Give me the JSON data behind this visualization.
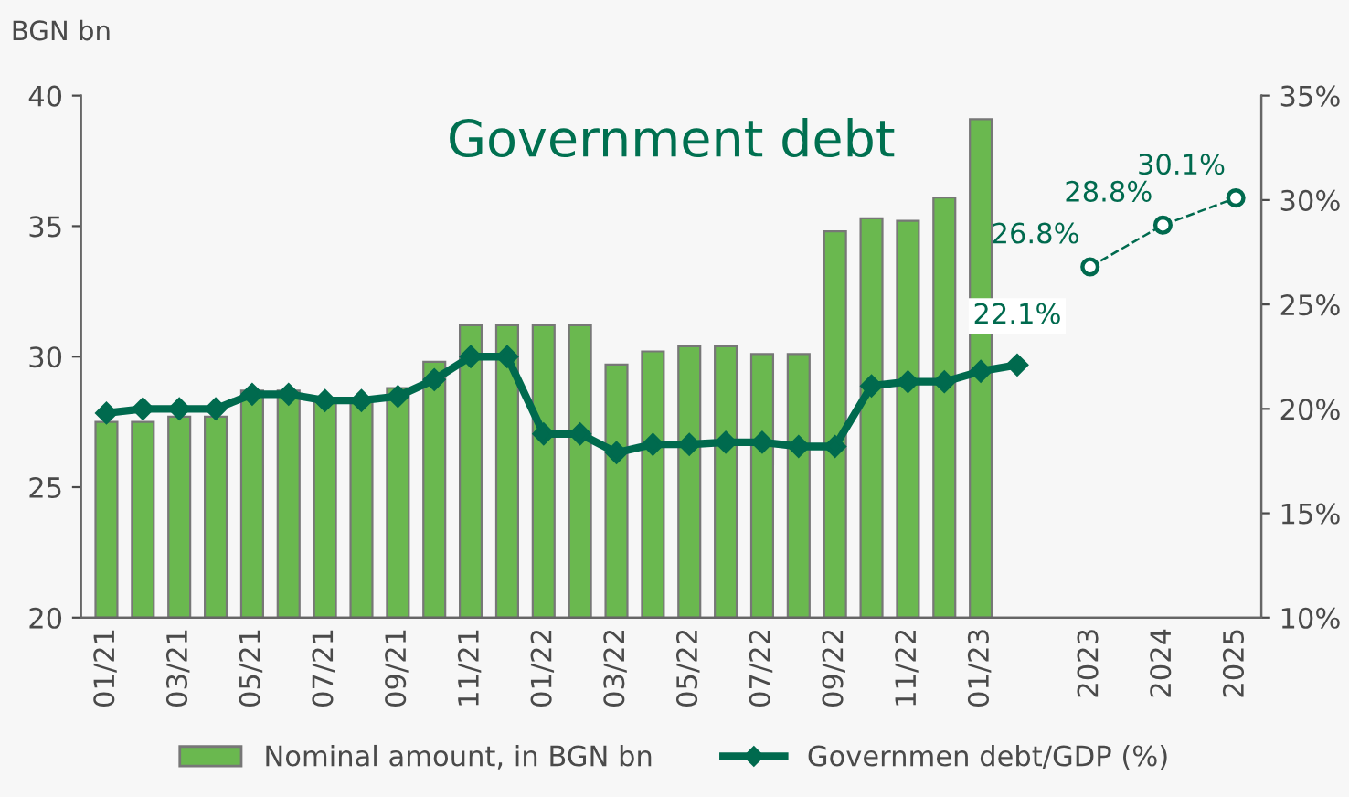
{
  "chart_data": {
    "type": "bar",
    "title": "Government debt",
    "ylabel": "BGN bn",
    "categories": [
      "01/21",
      null,
      "03/21",
      null,
      "05/21",
      null,
      "07/21",
      null,
      "09/21",
      null,
      "11/21",
      null,
      "01/22",
      null,
      "03/22",
      null,
      "05/22",
      null,
      "07/22",
      null,
      "09/22",
      null,
      "11/22",
      null,
      "01/23",
      null,
      null,
      "2023",
      null,
      "2024",
      null,
      "2025"
    ],
    "series": [
      {
        "name": "Nominal amount, in BGN bn",
        "color": "#6ab84f",
        "values": [
          27.5,
          27.5,
          27.7,
          27.7,
          28.7,
          28.7,
          28.4,
          28.4,
          28.8,
          29.8,
          31.2,
          31.2,
          31.2,
          31.2,
          29.7,
          30.2,
          30.4,
          30.4,
          30.1,
          30.1,
          34.8,
          35.3,
          35.2,
          36.1,
          39.1,
          null,
          null,
          null,
          null,
          null,
          null,
          null
        ]
      },
      {
        "name": "Governmen debt/GDP (%)",
        "type": "line",
        "axis": "y2",
        "color": "#006a4e",
        "marker": "diamond",
        "line_style": "solid",
        "values": [
          19.8,
          20.0,
          20.0,
          20.0,
          20.7,
          20.7,
          20.4,
          20.4,
          20.6,
          21.4,
          22.5,
          22.5,
          18.8,
          18.8,
          17.9,
          18.3,
          18.3,
          18.4,
          18.4,
          18.2,
          18.2,
          21.1,
          21.3,
          21.3,
          21.8,
          22.1,
          null,
          null,
          null,
          null,
          null,
          null
        ],
        "value_labels": [
          null,
          null,
          null,
          null,
          null,
          null,
          null,
          null,
          null,
          null,
          null,
          null,
          null,
          null,
          null,
          null,
          null,
          null,
          null,
          null,
          null,
          null,
          null,
          null,
          null,
          "22.1%",
          null,
          null,
          null,
          null,
          null,
          null
        ]
      },
      {
        "type": "line",
        "axis": "y2",
        "color": "#006a4e",
        "marker": "circle",
        "line_style": "dashed",
        "values": [
          null,
          null,
          null,
          null,
          null,
          null,
          null,
          null,
          null,
          null,
          null,
          null,
          null,
          null,
          null,
          null,
          null,
          null,
          null,
          null,
          null,
          null,
          null,
          null,
          null,
          null,
          null,
          26.8,
          null,
          28.8,
          null,
          30.1
        ],
        "value_labels": [
          null,
          null,
          null,
          null,
          null,
          null,
          null,
          null,
          null,
          null,
          null,
          null,
          null,
          null,
          null,
          null,
          null,
          null,
          null,
          null,
          null,
          null,
          null,
          null,
          null,
          null,
          null,
          "26.8%",
          null,
          "28.8%",
          null,
          "30.1%"
        ]
      }
    ],
    "ylim": [
      20,
      40
    ],
    "yticks": [
      20,
      25,
      30,
      35,
      40
    ],
    "y2lim": [
      10,
      35
    ],
    "y2ticks": [
      {
        "value": 10,
        "label": "10%"
      },
      {
        "value": 15,
        "label": "15%"
      },
      {
        "value": 20,
        "label": "20%"
      },
      {
        "value": 25,
        "label": "25%"
      },
      {
        "value": 30,
        "label": "30%"
      },
      {
        "value": 35,
        "label": "35%"
      }
    ],
    "grid": false,
    "legend": "bottom"
  }
}
